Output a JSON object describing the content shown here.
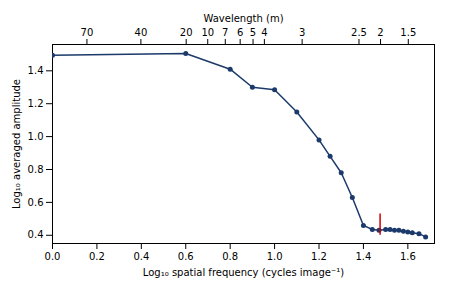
{
  "chart_data": {
    "type": "line",
    "x": [
      0.0,
      0.6,
      0.8,
      0.9,
      1.0,
      1.1,
      1.2,
      1.25,
      1.3,
      1.35,
      1.4,
      1.44,
      1.47,
      1.5,
      1.52,
      1.54,
      1.56,
      1.58,
      1.6,
      1.62,
      1.65,
      1.68
    ],
    "values": [
      1.495,
      1.505,
      1.41,
      1.3,
      1.285,
      1.15,
      0.98,
      0.88,
      0.78,
      0.63,
      0.46,
      0.435,
      0.43,
      0.435,
      0.435,
      0.43,
      0.43,
      0.425,
      0.42,
      0.415,
      0.41,
      0.39
    ],
    "color": "#1b3a6b",
    "marker": "circle",
    "xlabel": "Log₁₀ spatial frequency (cycles image⁻¹)",
    "ylabel": "Log₁₀ averaged amplitude",
    "x2label": "Wavelength (m)",
    "xlim": [
      0.0,
      1.72
    ],
    "ylim": [
      0.35,
      1.56
    ],
    "xticks": [
      {
        "value": 0.0,
        "label": "0.0"
      },
      0.2,
      0.4,
      0.6,
      0.8,
      {
        "value": 1.0,
        "label": "1.0"
      },
      1.2,
      1.4,
      1.6
    ],
    "yticks": [
      0.4,
      0.6,
      0.8,
      {
        "value": 1.0,
        "label": "1.0"
      },
      1.2,
      1.4
    ],
    "x2ticks": [
      {
        "value": 0.155,
        "label": "70"
      },
      {
        "value": 0.398,
        "label": "40"
      },
      {
        "value": 0.602,
        "label": "20"
      },
      {
        "value": 0.699,
        "label": "10"
      },
      {
        "value": 0.778,
        "label": "7"
      },
      {
        "value": 0.845,
        "label": "6"
      },
      {
        "value": 0.903,
        "label": "5"
      },
      {
        "value": 0.954,
        "label": "4"
      },
      {
        "value": 1.124,
        "label": "3"
      },
      {
        "value": 1.38,
        "label": "2.5"
      },
      {
        "value": 1.477,
        "label": "2"
      },
      {
        "value": 1.602,
        "label": "1.5"
      }
    ],
    "vlines": [
      {
        "x": 1.475,
        "y_bottom": 0.4,
        "y_top": 0.53,
        "color": "#cc0000"
      }
    ],
    "grid": false
  }
}
